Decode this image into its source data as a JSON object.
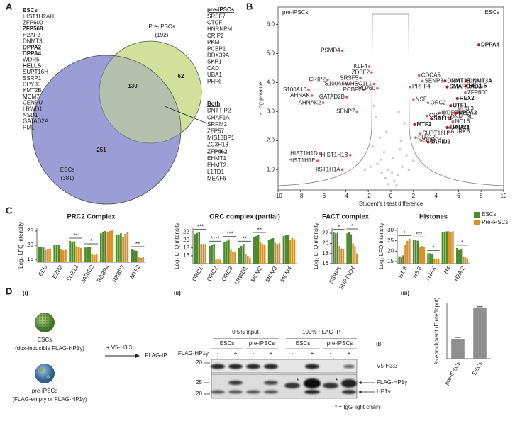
{
  "panel_labels": [
    "A",
    "B",
    "C",
    "D"
  ],
  "sub_labels": [
    "(i)",
    "(ii)",
    "(iii)"
  ],
  "venn": {
    "pre_name": "Pre-iPSCs",
    "pre_total": "(192)",
    "esc_name": "ESCs",
    "esc_total": "(381)",
    "only_pre": 62,
    "both": 130,
    "only_esc": 251,
    "esc_color": "#9b9fd6",
    "pre_color": "#c9dc8a"
  },
  "gene_lists": {
    "esc": {
      "title": "ESCs",
      "genes": [
        {
          "name": "HIST1H2AH"
        },
        {
          "name": "ZFP600"
        },
        {
          "name": "ZFP568",
          "bold": true
        },
        {
          "name": "H2AFZ"
        },
        {
          "name": "DNMT3L"
        },
        {
          "name": "DPPA2",
          "bold": true
        },
        {
          "name": "DPPA4",
          "bold": true
        },
        {
          "name": "WDR5"
        },
        {
          "name": "HELLS",
          "bold": true
        },
        {
          "name": "SUPT16H"
        },
        {
          "name": "SSRP1"
        },
        {
          "name": "DPY30"
        },
        {
          "name": "KMT2B"
        },
        {
          "name": "MCM7"
        },
        {
          "name": "CENPU"
        },
        {
          "name": "LRWD1"
        },
        {
          "name": "NSD1"
        },
        {
          "name": "GATAD2A"
        },
        {
          "name": "PML"
        }
      ]
    },
    "pre": {
      "title": "pre-iPSCs",
      "genes": [
        {
          "name": "SRSF7"
        },
        {
          "name": "CTCF"
        },
        {
          "name": "HNRNPM"
        },
        {
          "name": "CRIP2"
        },
        {
          "name": "PKM"
        },
        {
          "name": "PCBP1"
        },
        {
          "name": "DDX39A"
        },
        {
          "name": "SKP1"
        },
        {
          "name": "CAD"
        },
        {
          "name": "UBA1"
        },
        {
          "name": "PHF6"
        }
      ]
    },
    "both": {
      "title": "Both",
      "genes": [
        {
          "name": "DNTTIP2"
        },
        {
          "name": "CHAF1A",
          "color": "#a23a9c"
        },
        {
          "name": "SRRM2"
        },
        {
          "name": "ZFP57"
        },
        {
          "name": "MIS18BP1"
        },
        {
          "name": "ZC3H18"
        },
        {
          "name": "ZFP462",
          "bold": true,
          "color": "#a23a9c"
        },
        {
          "name": "EHMT1",
          "color": "#a23a9c"
        },
        {
          "name": "EHMT2",
          "color": "#a23a9c"
        },
        {
          "name": "L1TD1"
        },
        {
          "name": "MEAF6"
        }
      ]
    }
  },
  "chart_data": [
    {
      "type": "scatter",
      "left_label": "pre-iPSCs",
      "right_label": "ESCs",
      "ylabel": "- Log p-value",
      "xlabel": "Student's t-test difference",
      "xlim": [
        -10,
        10
      ],
      "ylim": [
        0.3,
        6.6
      ],
      "xticks": [
        -10,
        -8,
        -6,
        -4,
        -2,
        0,
        2,
        4,
        6,
        8,
        10
      ],
      "yticks": [
        {
          "value": 1,
          "label": "1.0"
        },
        {
          "value": 2,
          "label": "2.0"
        },
        {
          "value": 3,
          "label": "3.0"
        },
        {
          "value": 4,
          "label": "4.0"
        },
        {
          "value": 5,
          "label": "5.0"
        },
        {
          "value": 6,
          "label": "6.0"
        }
      ],
      "series": [
        {
          "color": "#d9605a",
          "labels": [
            "PSMD4",
            "KLF4",
            "ZDBF2",
            "CRIP2",
            "SRSF5",
            "S100A6",
            "WHSC1L1",
            "PCBP2",
            "PLP60",
            "S100A10",
            "AHNAK",
            "GATAD2B",
            "AHNAK2",
            "SENP7",
            "HIST1H1D",
            "HIST1H1B",
            "HIST1H1E",
            "HIST1H1A",
            "CDCA5",
            "SENP3",
            "PRPF4",
            "NSF",
            "ORC2",
            "ZFP600",
            "H3.3",
            "WDR76",
            "PML",
            "ORC3",
            "DNMT3L",
            "NOL6",
            "JADE1",
            "AURKB",
            "SUPT16H",
            "SUZ12",
            "SSRP1"
          ],
          "x": [
            -4.3,
            -1.9,
            -1.7,
            -5.6,
            -2.7,
            -3.9,
            -1.5,
            -2.4,
            -1.2,
            -7.3,
            -7.0,
            -3.9,
            -6.0,
            -3.0,
            -6.3,
            -3.6,
            -6.5,
            -4.3,
            2.5,
            2.8,
            1.7,
            2.0,
            3.3,
            6.6,
            6.1,
            4.3,
            5.7,
            3.2,
            5.1,
            5.5,
            5.2,
            5.1,
            2.6,
            2.2,
            2.7
          ],
          "y": [
            5.1,
            4.55,
            4.35,
            4.1,
            4.15,
            3.95,
            3.95,
            3.75,
            3.8,
            3.75,
            3.55,
            3.5,
            3.3,
            3.0,
            1.55,
            1.5,
            1.3,
            1.0,
            4.25,
            4.05,
            3.85,
            3.42,
            3.3,
            3.65,
            3.1,
            2.95,
            2.95,
            2.85,
            2.8,
            2.65,
            2.45,
            2.3,
            2.25,
            2.1,
            2.0
          ]
        },
        {
          "color": "#b3141f",
          "bold": true,
          "labels": [
            "DPPA4",
            "DNMT3B",
            "DNMT3A",
            "HELLS",
            "SMARCAD1",
            "REX2",
            "UTF1",
            "DPPA2",
            "SALL4",
            "MTF2",
            "TRIM24",
            "JARID2"
          ],
          "x": [
            7.8,
            4.8,
            6.7,
            6.7,
            5.0,
            5.9,
            5.3,
            5.8,
            3.6,
            2.1,
            5.0,
            3.3
          ],
          "y": [
            5.3,
            4.05,
            4.05,
            3.88,
            3.85,
            3.45,
            3.2,
            2.95,
            2.75,
            2.55,
            2.45,
            1.95
          ]
        },
        {
          "color": "#c2c2c2",
          "x": [
            -1.2,
            -0.8,
            -0.5,
            0.3,
            0.6,
            1.0,
            1.4,
            -1.6,
            -1.0,
            0.9,
            -0.3,
            0.2,
            -0.6,
            1.2,
            -1.3,
            0.5,
            -0.2,
            0.8,
            -0.9,
            1.6,
            -1.8,
            2.0,
            -2.3,
            0.1,
            -0.4,
            0.7,
            -1.5
          ],
          "y": [
            1.2,
            0.9,
            0.7,
            0.6,
            0.8,
            1.1,
            1.5,
            1.8,
            2.1,
            2.0,
            1.0,
            1.4,
            1.6,
            2.6,
            2.8,
            0.45,
            0.5,
            1.7,
            1.35,
            1.0,
            1.1,
            1.3,
            1.0,
            0.9,
            2.3,
            3.0,
            3.2
          ]
        }
      ]
    },
    {
      "type": "grouped_bar",
      "title": "PRC2 Complex",
      "ylabel": "Log₂ LFQ intensity",
      "ylim": [
        14,
        26
      ],
      "yticks": [
        15,
        20,
        25
      ],
      "categories": [
        "EED",
        "EZH2",
        "SUZ12",
        "JARID2",
        "RBBP4",
        "RBBP7",
        "MTF2"
      ],
      "annotations": [
        null,
        null,
        "**",
        "*",
        null,
        null,
        "**"
      ],
      "series": [
        {
          "color": "#4e8a2e",
          "values": [
            [
              19.5,
              19.3,
              19.2
            ],
            [
              20.2,
              20.1,
              20.0
            ],
            [
              21.5,
              21.3,
              21.4
            ],
            [
              19.2,
              19.4,
              19.5
            ],
            [
              24.2,
              24.8,
              25.0
            ],
            [
              23.5,
              23.8,
              24.2
            ],
            [
              18.5,
              18.2,
              18.0
            ]
          ]
        },
        {
          "color": "#d9912a",
          "values": [
            [
              18.3,
              18.5,
              18.8
            ],
            [
              18.5,
              18.2,
              18.4
            ],
            [
              19.6,
              19.3,
              19.0
            ],
            [
              17.0,
              16.5,
              16.8
            ],
            [
              24.5,
              25.0,
              25.2
            ],
            [
              23.0,
              24.0,
              24.5
            ],
            [
              16.0,
              15.5,
              15.8
            ]
          ]
        }
      ]
    },
    {
      "type": "grouped_bar",
      "title": "ORC complex (partial)",
      "ylabel": "Log₂ LFQ intensity",
      "ylim": [
        14,
        23
      ],
      "yticks": [
        16,
        18,
        20,
        22
      ],
      "categories": [
        "ORC1",
        "ORC2",
        "ORC3",
        "LRWD1",
        "MCM2",
        "MCM3",
        "MCM4"
      ],
      "annotations": [
        "***",
        "****",
        "***",
        "**",
        "**",
        null,
        null
      ],
      "series": [
        {
          "color": "#4e8a2e",
          "values": [
            [
              21.5,
              21.8,
              22.0
            ],
            [
              18.5,
              18.8,
              19.0
            ],
            [
              19.5,
              19.8,
              20.2
            ],
            [
              18.0,
              18.5,
              19.0
            ],
            [
              20.8,
              21.0,
              21.2
            ],
            [
              20.0,
              20.3,
              20.5
            ],
            [
              21.0,
              21.2,
              21.3
            ]
          ]
        },
        {
          "color": "#d9912a",
          "values": [
            [
              19.0,
              19.0,
              19.0
            ],
            [
              15.0,
              15.2,
              15.0
            ],
            [
              17.5,
              17.0,
              17.0
            ],
            [
              16.5,
              16.0,
              15.5
            ],
            [
              19.5,
              19.0,
              18.8
            ],
            [
              19.3,
              19.0,
              19.2
            ],
            [
              20.0,
              20.5,
              20.2
            ]
          ]
        }
      ]
    },
    {
      "type": "grouped_bar",
      "title": "FACT complex",
      "ylabel": "Log₂ LFQ intensity",
      "ylim": [
        16,
        23
      ],
      "yticks": [
        16,
        18,
        20,
        22
      ],
      "categories": [
        "SSRP1",
        "SUPT16H"
      ],
      "annotations": [
        "*",
        "*"
      ],
      "series": [
        {
          "color": "#4e8a2e",
          "values": [
            [
              22.2,
              22.0,
              22.1
            ],
            [
              22.0,
              22.3,
              21.8
            ]
          ]
        },
        {
          "color": "#d9912a",
          "values": [
            [
              19.5,
              19.0,
              18.8
            ],
            [
              20.0,
              19.5,
              18.0
            ]
          ]
        }
      ]
    },
    {
      "type": "grouped_bar",
      "title": "Histones",
      "ylabel": "Log₂ LFQ intensity",
      "ylim": [
        14,
        31
      ],
      "yticks": [
        15,
        20,
        25,
        30
      ],
      "legend": "top-right",
      "categories": [
        "H1.3",
        "H3.3",
        "H2AX",
        "H4",
        "H2A.2"
      ],
      "annotations": [
        "*",
        "***",
        "*",
        null,
        "*"
      ],
      "series": [
        {
          "name": "ESCs",
          "color": "#4e8a2e",
          "values": [
            [
              17.5,
              17.0,
              18.0
            ],
            [
              25.5,
              25.5,
              25.0
            ],
            [
              19.0,
              19.0,
              18.5
            ],
            [
              29.0,
              29.0,
              29.5
            ],
            [
              21.5,
              20.5,
              21.0
            ]
          ]
        },
        {
          "name": "Pre-iPSCs",
          "color": "#d9912a",
          "values": [
            [
              23.0,
              25.0,
              26.0
            ],
            [
              22.0,
              22.5,
              22.0
            ],
            [
              16.5,
              16.0,
              16.5
            ],
            [
              29.5,
              29.0,
              29.5
            ],
            [
              17.5,
              17.0,
              16.5
            ]
          ]
        }
      ]
    },
    {
      "type": "bar",
      "ylabel": "% enrichment (Elute/Input)",
      "ylim": [
        0,
        0.13
      ],
      "color": "#8f8f8f",
      "categories": [
        "pre-iPSCs",
        "ESCs"
      ],
      "values": [
        0.045,
        0.12
      ],
      "errors": [
        0.005,
        0.002
      ]
    }
  ],
  "schematic": {
    "esc_label": "ESCs",
    "esc_note": "(dox-inducible FLAG-HP1γ)",
    "pre_label": "pre-iPSCs",
    "pre_note": "(FLAG-empty or FLAG-HP1γ)",
    "treatment": "+ V5-H3.3",
    "result": "FLAG-IP"
  },
  "blot": {
    "input_title": "0.5% input",
    "ip_title": "100% FLAG-IP",
    "groups": [
      "ESCs",
      "pre-iPSCs",
      "ESCs",
      "pre-iPSCs"
    ],
    "row_label": "FLAG-HP1γ",
    "signs": [
      "-",
      "+",
      "-",
      "+",
      "-",
      "+",
      "-",
      "+"
    ],
    "ib": "IB:",
    "markers": [
      20,
      25,
      20
    ],
    "bands": [
      "V5-H3.3",
      "FLAG-HP1γ",
      "HP1γ"
    ],
    "note": "* = IgG light chain"
  }
}
